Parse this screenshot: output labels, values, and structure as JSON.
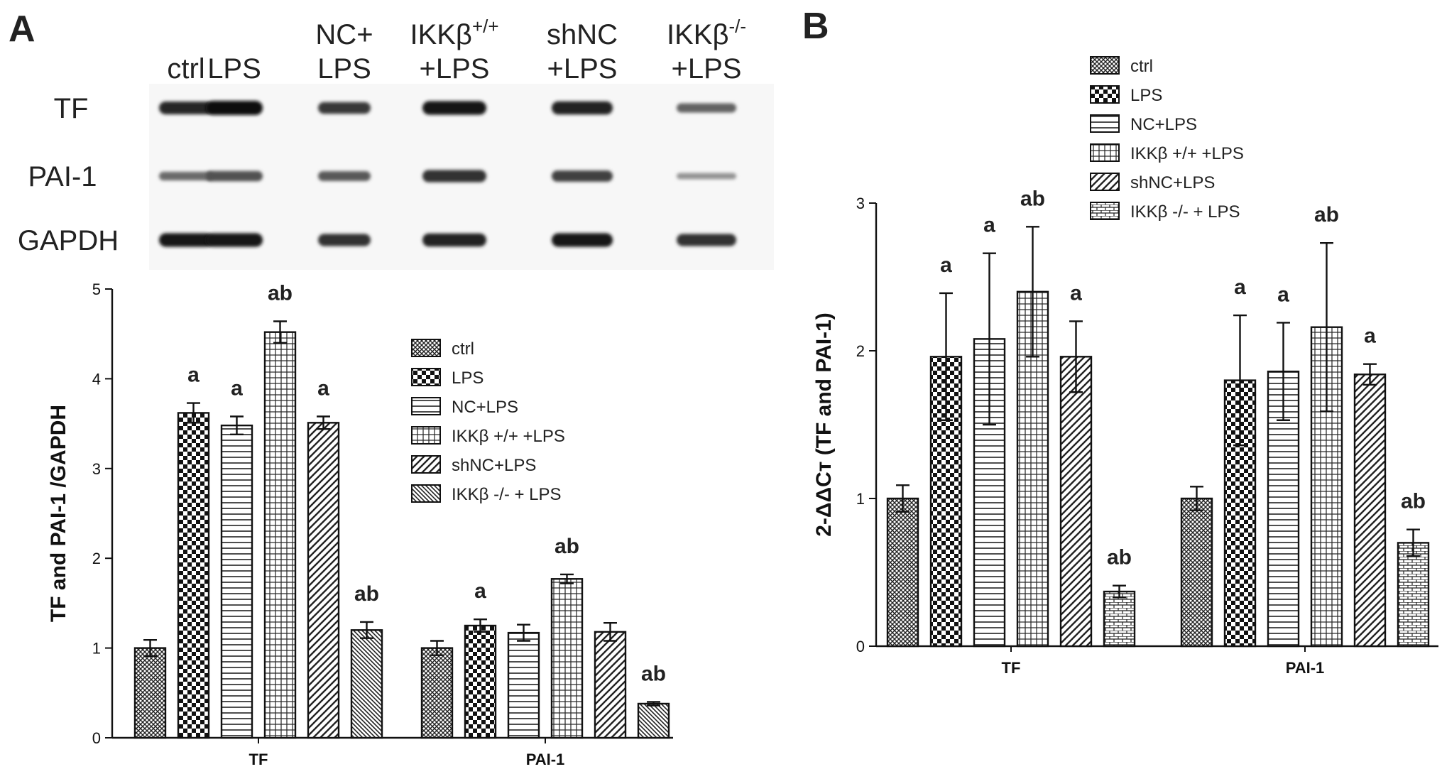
{
  "panels": {
    "a": {
      "letter": "A",
      "blot": {
        "lanes": [
          "ctrl",
          "LPS",
          "NC+\nLPS",
          "IKKβ+/+\n+LPS",
          "shNC\n+LPS",
          "IKKβ-/-\n+LPS"
        ],
        "rows": [
          {
            "label": "TF",
            "intensities": [
              0.85,
              1.0,
              0.75,
              0.95,
              0.9,
              0.5
            ]
          },
          {
            "label": "PAI-1",
            "intensities": [
              0.45,
              0.6,
              0.55,
              0.8,
              0.7,
              0.2
            ]
          },
          {
            "label": "GAPDH",
            "intensities": [
              0.95,
              0.95,
              0.8,
              0.9,
              0.95,
              0.8
            ]
          }
        ]
      }
    },
    "b": {
      "letter": "B"
    }
  },
  "chart_data": [
    {
      "type": "bar",
      "panel": "A",
      "ylabel": "TF and PAI-1 /GAPDH",
      "xlabel": "",
      "ylim": [
        0,
        5
      ],
      "yticks": [
        0,
        1,
        2,
        3,
        4,
        5
      ],
      "categories": [
        "TF",
        "PAI-1"
      ],
      "legend_position": "right",
      "series": [
        {
          "name": "ctrl",
          "pattern": "fine-cross",
          "values": [
            1.0,
            1.0
          ],
          "errors": [
            0.09,
            0.08
          ],
          "significance": [
            "",
            ""
          ]
        },
        {
          "name": "LPS",
          "pattern": "checker",
          "values": [
            3.62,
            1.25
          ],
          "errors": [
            0.11,
            0.07
          ],
          "significance": [
            "a",
            "a"
          ]
        },
        {
          "name": "NC+LPS",
          "pattern": "hlines",
          "values": [
            3.48,
            1.17
          ],
          "errors": [
            0.1,
            0.09
          ],
          "significance": [
            "a",
            ""
          ]
        },
        {
          "name": "IKKβ +/+ +LPS",
          "pattern": "grid",
          "values": [
            4.52,
            1.77
          ],
          "errors": [
            0.12,
            0.05
          ],
          "significance": [
            "ab",
            "ab"
          ]
        },
        {
          "name": "shNC+LPS",
          "pattern": "diag",
          "values": [
            3.51,
            1.18
          ],
          "errors": [
            0.07,
            0.1
          ],
          "significance": [
            "a",
            ""
          ]
        },
        {
          "name": "IKKβ -/- + LPS",
          "pattern": "diag-dense",
          "values": [
            1.2,
            0.38
          ],
          "errors": [
            0.09,
            0.02
          ],
          "significance": [
            "ab",
            "ab"
          ]
        }
      ]
    },
    {
      "type": "bar",
      "panel": "B",
      "ylabel": "2-ΔΔCт (TF and PAI-1)",
      "xlabel": "",
      "ylim": [
        0,
        3
      ],
      "yticks": [
        0,
        1,
        2,
        3
      ],
      "categories": [
        "TF",
        "PAI-1"
      ],
      "legend_position": "top",
      "series": [
        {
          "name": "ctrl",
          "pattern": "fine-cross",
          "values": [
            1.0,
            1.0
          ],
          "errors": [
            0.09,
            0.08
          ],
          "significance": [
            "",
            ""
          ]
        },
        {
          "name": "LPS",
          "pattern": "checker",
          "values": [
            1.96,
            1.8
          ],
          "errors": [
            0.43,
            0.44
          ],
          "significance": [
            "a",
            "a"
          ]
        },
        {
          "name": "NC+LPS",
          "pattern": "hlines",
          "values": [
            2.08,
            1.86
          ],
          "errors": [
            0.58,
            0.33
          ],
          "significance": [
            "a",
            "a"
          ]
        },
        {
          "name": "IKKβ +/+ +LPS",
          "pattern": "grid",
          "values": [
            2.4,
            2.16
          ],
          "errors": [
            0.44,
            0.57
          ],
          "significance": [
            "ab",
            "ab"
          ]
        },
        {
          "name": "shNC+LPS",
          "pattern": "diag",
          "values": [
            1.96,
            1.84
          ],
          "errors": [
            0.24,
            0.07
          ],
          "significance": [
            "a",
            "a"
          ]
        },
        {
          "name": "IKKβ -/- + LPS",
          "pattern": "bricks",
          "values": [
            0.37,
            0.7
          ],
          "errors": [
            0.04,
            0.09
          ],
          "significance": [
            "ab",
            "ab"
          ]
        }
      ]
    }
  ]
}
